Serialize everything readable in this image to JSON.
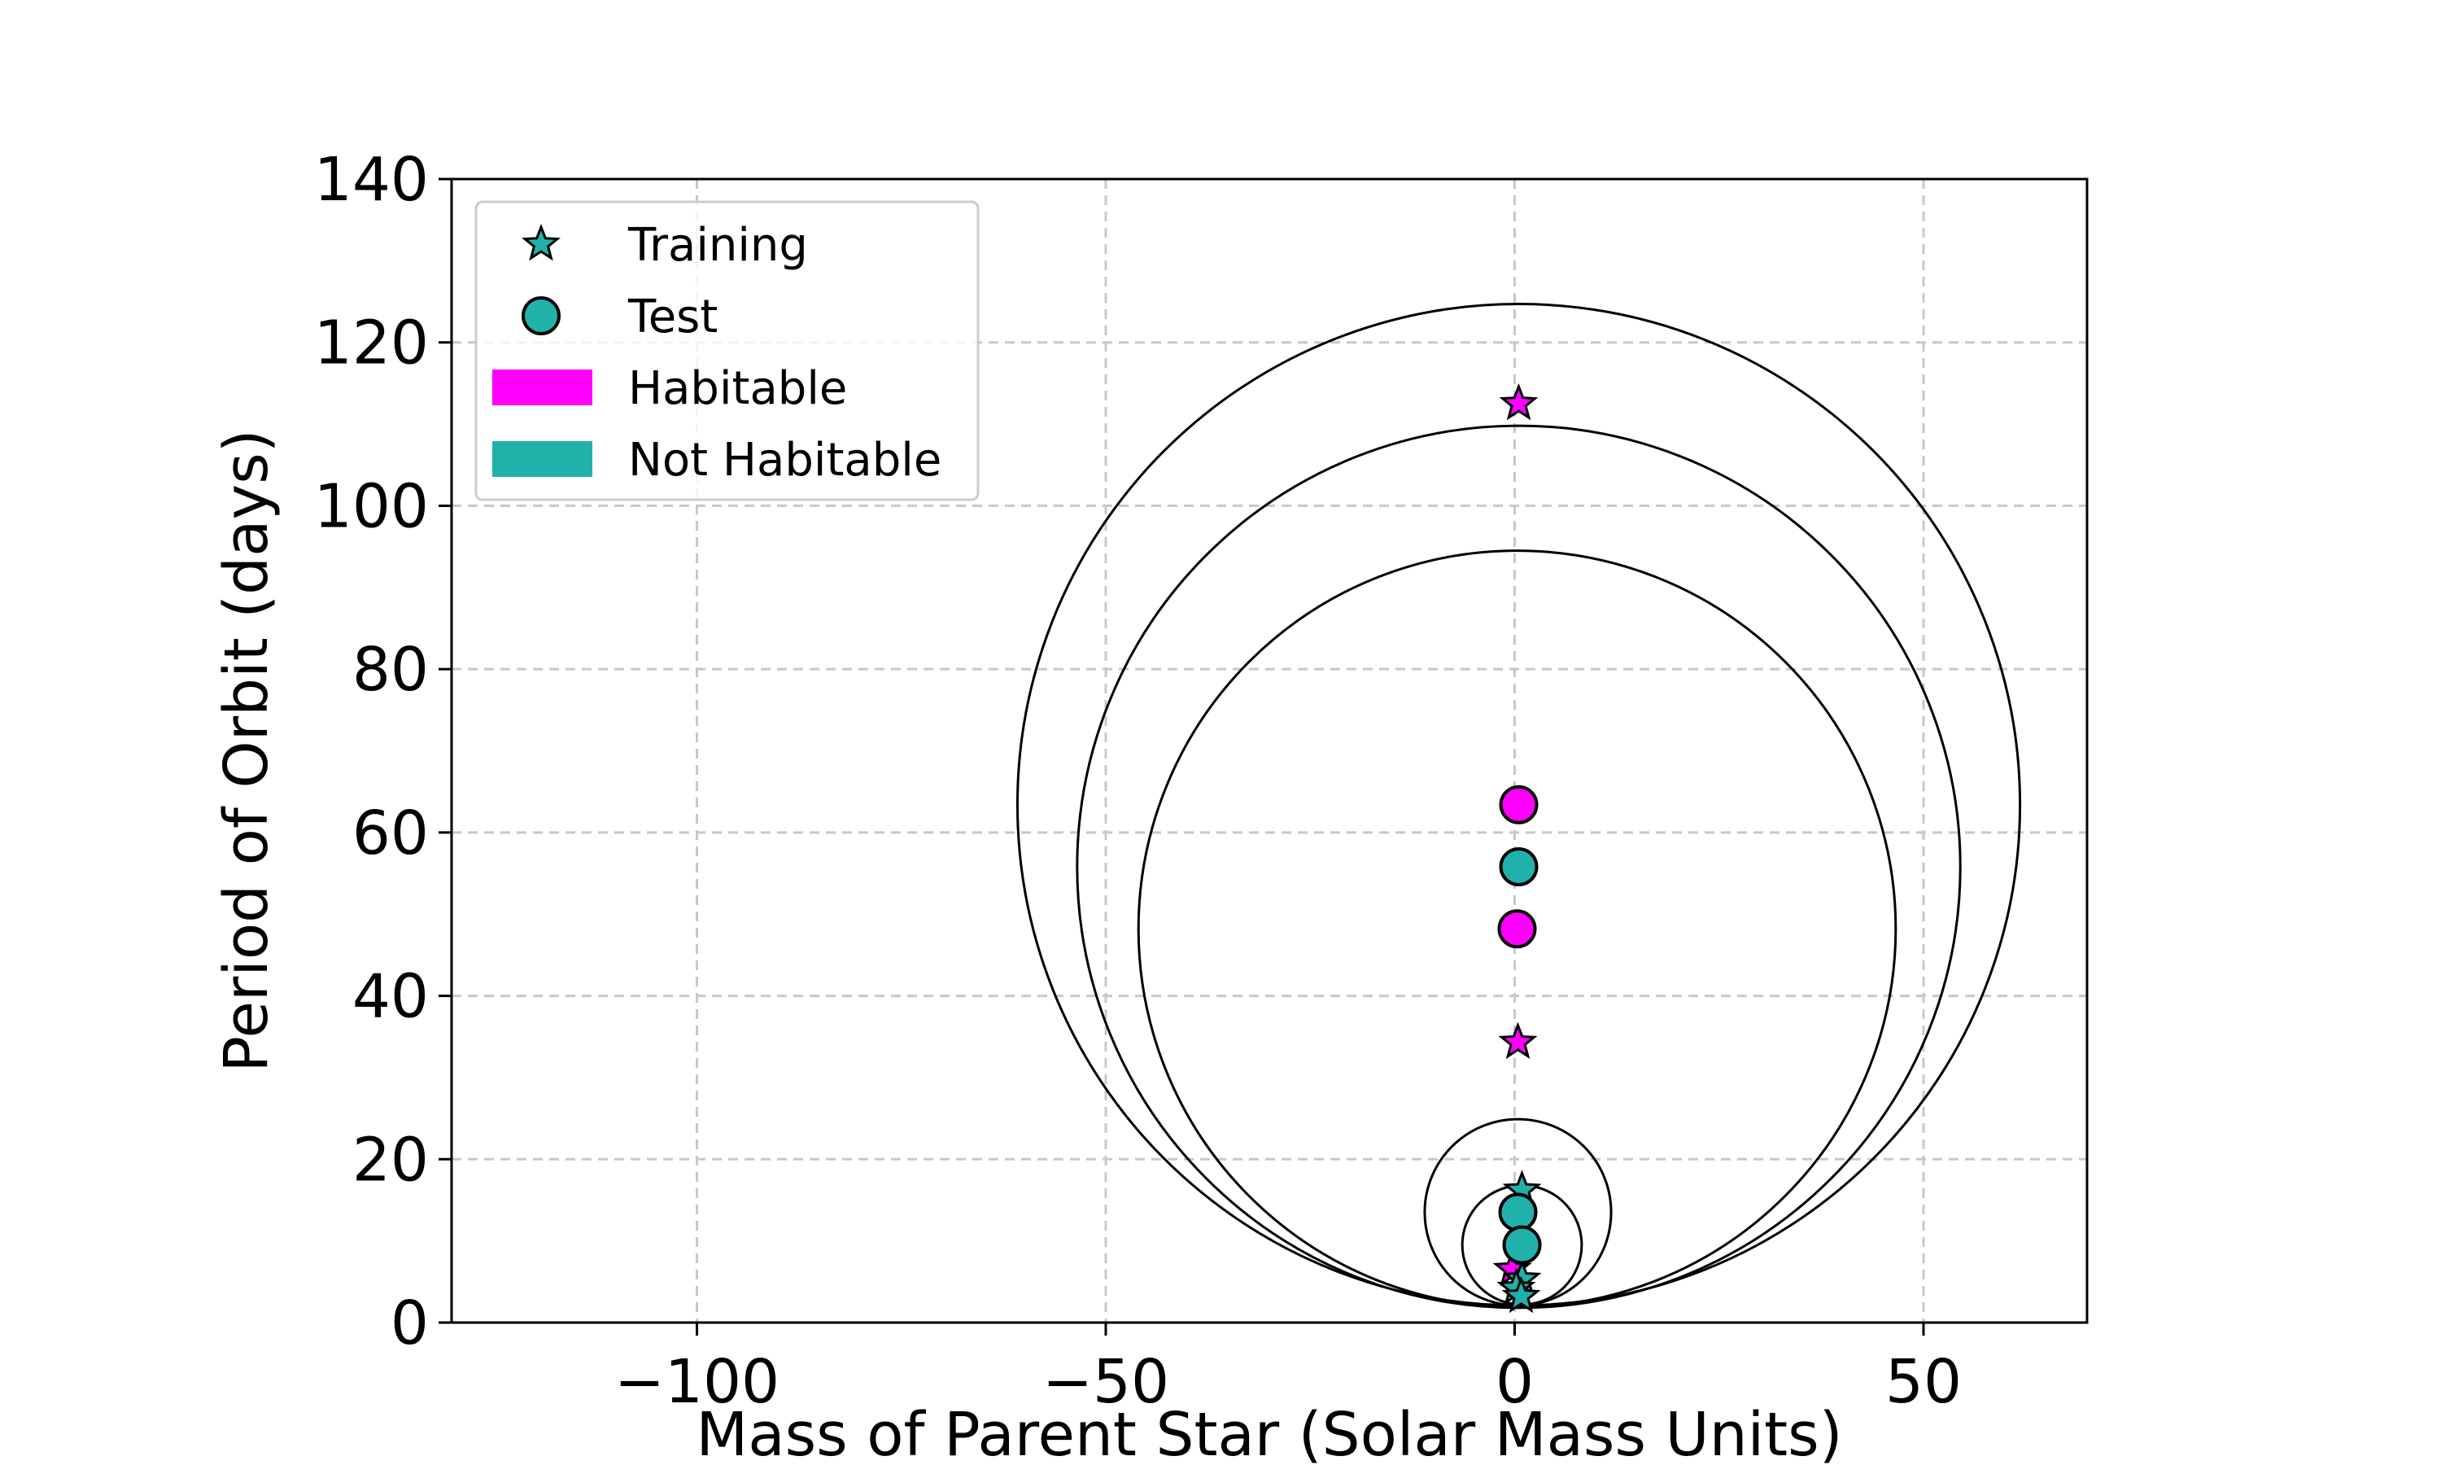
{
  "chart_data": {
    "type": "scatter",
    "title": "",
    "xlabel": "Mass of Parent Star (Solar Mass Units)",
    "ylabel": "Period of Orbit (days)",
    "xlim": [
      -130,
      70
    ],
    "ylim": [
      0,
      140
    ],
    "x_ticks": [
      -100,
      -50,
      0,
      50
    ],
    "x_tick_labels": [
      "−100",
      "−50",
      "0",
      "50"
    ],
    "y_ticks": [
      0,
      20,
      40,
      60,
      80,
      100,
      120,
      140
    ],
    "y_tick_labels": [
      "0",
      "20",
      "40",
      "60",
      "80",
      "100",
      "120",
      "140"
    ],
    "grid": true,
    "legend_position": "upper-left",
    "legend": [
      {
        "label": "Training",
        "marker": "star",
        "color": "#20b2aa"
      },
      {
        "label": "Test",
        "marker": "circle",
        "color": "#20b2aa"
      },
      {
        "label": "Habitable",
        "marker": "patch",
        "color": "#ff00ff"
      },
      {
        "label": "Not Habitable",
        "marker": "patch",
        "color": "#20b2aa"
      }
    ],
    "colors": {
      "habitable": "#ff00ff",
      "not_habitable": "#20b2aa"
    },
    "series": [
      {
        "name": "Training",
        "marker": "star",
        "points": [
          {
            "x": 0.5,
            "y": 112.5,
            "habitable": true
          },
          {
            "x": 0.4,
            "y": 34.3,
            "habitable": true
          },
          {
            "x": 0.9,
            "y": 16.2,
            "habitable": false
          },
          {
            "x": -0.3,
            "y": 6.5,
            "habitable": true
          },
          {
            "x": 0.9,
            "y": 5.3,
            "habitable": false
          },
          {
            "x": 0.2,
            "y": 4.2,
            "habitable": false
          },
          {
            "x": 0.8,
            "y": 3.2,
            "habitable": false
          }
        ]
      },
      {
        "name": "Test",
        "marker": "circle",
        "points": [
          {
            "x": 0.5,
            "y": 63.4,
            "habitable": true
          },
          {
            "x": 0.5,
            "y": 55.8,
            "habitable": false
          },
          {
            "x": 0.3,
            "y": 48.2,
            "habitable": true
          },
          {
            "x": 0.4,
            "y": 13.5,
            "habitable": false
          },
          {
            "x": 0.9,
            "y": 9.5,
            "habitable": false
          }
        ]
      }
    ],
    "rings": [
      {
        "cx": 0.5,
        "cy": 63.4,
        "radius": 61.3
      },
      {
        "cx": 0.5,
        "cy": 55.8,
        "radius": 54.0
      },
      {
        "cx": 0.3,
        "cy": 48.2,
        "radius": 46.3
      },
      {
        "cx": 0.4,
        "cy": 13.5,
        "radius": 11.4
      },
      {
        "cx": 0.9,
        "cy": 9.5,
        "radius": 7.3
      }
    ]
  }
}
